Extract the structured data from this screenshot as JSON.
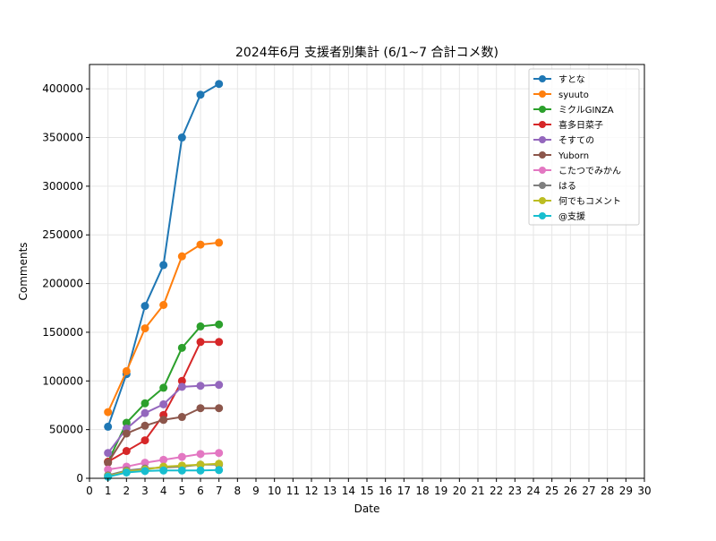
{
  "chart_data": {
    "type": "line",
    "title": "2024年6月 支援者別集計 (6/1~7 合計コメ数)",
    "xlabel": "Date",
    "ylabel": "Comments",
    "xlim": [
      0,
      30
    ],
    "ylim": [
      0,
      425000
    ],
    "x_ticks": [
      0,
      1,
      2,
      3,
      4,
      5,
      6,
      7,
      8,
      9,
      10,
      11,
      12,
      13,
      14,
      15,
      16,
      17,
      18,
      19,
      20,
      21,
      22,
      23,
      24,
      25,
      26,
      27,
      28,
      29,
      30
    ],
    "y_ticks": [
      0,
      50000,
      100000,
      150000,
      200000,
      250000,
      300000,
      350000,
      400000
    ],
    "grid": true,
    "legend_position": "top-right",
    "x": [
      1,
      2,
      3,
      4,
      5,
      6,
      7
    ],
    "series": [
      {
        "name": "すとな",
        "color": "#1f77b4",
        "values": [
          53000,
          107000,
          177000,
          219000,
          350000,
          394000,
          405000
        ]
      },
      {
        "name": "syuuto",
        "color": "#ff7f0e",
        "values": [
          68000,
          110000,
          154000,
          178000,
          228000,
          240000,
          242000
        ]
      },
      {
        "name": "ミクルGINZA",
        "color": "#2ca02c",
        "values": [
          17000,
          57000,
          77000,
          93000,
          134000,
          156000,
          158000
        ]
      },
      {
        "name": "喜多日菜子",
        "color": "#d62728",
        "values": [
          17000,
          28000,
          39000,
          65000,
          100000,
          140000,
          140000
        ]
      },
      {
        "name": "そすての",
        "color": "#9467bd",
        "values": [
          26000,
          51000,
          67000,
          76000,
          94000,
          95000,
          96000
        ]
      },
      {
        "name": "Yuborn",
        "color": "#8c564b",
        "values": [
          16000,
          46000,
          54000,
          60000,
          63000,
          72000,
          72000
        ]
      },
      {
        "name": "こたつでみかん",
        "color": "#e377c2",
        "values": [
          9000,
          12000,
          16000,
          19000,
          22000,
          25000,
          26000
        ]
      },
      {
        "name": "はる",
        "color": "#7f7f7f",
        "values": [
          3000,
          8000,
          10000,
          11000,
          12000,
          14000,
          14000
        ]
      },
      {
        "name": "何でもコメント",
        "color": "#bcbd22",
        "values": [
          2000,
          7000,
          9000,
          12000,
          13000,
          14000,
          15000
        ]
      },
      {
        "name": "@支援",
        "color": "#17becf",
        "values": [
          1500,
          6000,
          7500,
          8000,
          8000,
          8000,
          8500
        ]
      }
    ]
  }
}
